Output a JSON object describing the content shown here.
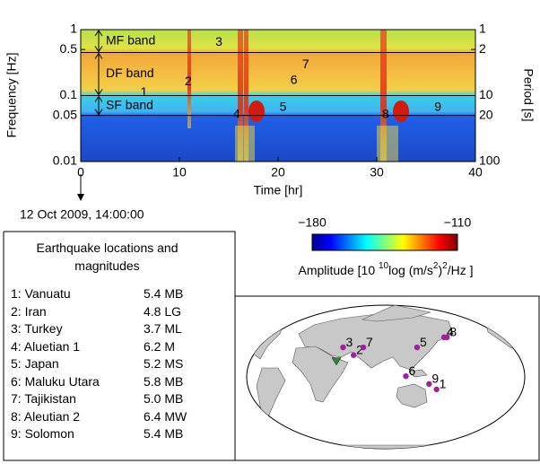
{
  "chart_data": {
    "type": "spectrogram",
    "xlabel": "Time [hr]",
    "ylabel": "Frequency [Hz]",
    "y2label": "Period [s]",
    "xlim": [
      0,
      40
    ],
    "xticks": [
      0,
      10,
      20,
      30,
      40
    ],
    "ylim": [
      0.01,
      1
    ],
    "yticks": [
      0.01,
      0.05,
      0.1,
      0.5,
      1
    ],
    "yscale": "log",
    "y2lim": [
      100,
      1
    ],
    "y2ticks": [
      100,
      20,
      10,
      2,
      1
    ],
    "y2scale": "log",
    "bands": [
      {
        "name": "MF band",
        "range": [
          1,
          0.45
        ]
      },
      {
        "name": "DF band",
        "range": [
          0.45,
          0.1
        ]
      },
      {
        "name": "SF band",
        "range": [
          0.1,
          0.05
        ]
      }
    ],
    "annotations": [
      {
        "label": "1",
        "x": 6.4,
        "y": 0.11
      },
      {
        "label": "2",
        "x": 10.9,
        "y": 0.16
      },
      {
        "label": "3",
        "x": 14,
        "y": 0.64
      },
      {
        "label": "4",
        "x": 15.8,
        "y": 0.051
      },
      {
        "label": "5",
        "x": 20.5,
        "y": 0.066
      },
      {
        "label": "6",
        "x": 21.6,
        "y": 0.17
      },
      {
        "label": "7",
        "x": 22.8,
        "y": 0.29
      },
      {
        "label": "8",
        "x": 30.9,
        "y": 0.051
      },
      {
        "label": "9",
        "x": 36.2,
        "y": 0.066
      }
    ],
    "start_note": "12 Oct 2009, 14:00:00",
    "colorbar": {
      "clim": [
        -180,
        -110
      ],
      "ticks": [
        {
          "value": -180,
          "label": "−180"
        },
        {
          "value": -110,
          "label": "−110"
        }
      ],
      "label_parts": [
        "Amplitude [10 ",
        "10",
        "log (m/s",
        "2",
        ")",
        "2",
        "/Hz ]"
      ]
    }
  },
  "legend_table": {
    "title": "Earthquake locations and magnitudes",
    "rows": [
      [
        "1: Vanuatu",
        "5.4 MB"
      ],
      [
        "2: Iran",
        "4.8 LG"
      ],
      [
        "3: Turkey",
        "3.7 ML"
      ],
      [
        "4: Aluetian 1",
        "6.2 M"
      ],
      [
        "5: Japan",
        "5.2 MS"
      ],
      [
        "6: Maluku Utara",
        "5.8 MB"
      ],
      [
        "7: Tajikistan",
        "5.0 MB"
      ],
      [
        "8: Aleutian 2",
        "6.4 MW"
      ],
      [
        "9: Solomon",
        "5.4 MB"
      ]
    ]
  },
  "map": {
    "center_lon": 100,
    "locations": [
      {
        "label": "1",
        "lon": 168,
        "lat": -16
      },
      {
        "label": "2",
        "lon": 57,
        "lat": 28
      },
      {
        "label": "3",
        "lon": 43,
        "lat": 38
      },
      {
        "label": "4",
        "lon": 178,
        "lat": 51
      },
      {
        "label": "5",
        "lon": 142,
        "lat": 38
      },
      {
        "label": "6",
        "lon": 127,
        "lat": 1
      },
      {
        "label": "7",
        "lon": 70,
        "lat": 38
      },
      {
        "label": "8",
        "lon": 182,
        "lat": 51
      },
      {
        "label": "9",
        "lon": 158,
        "lat": -9
      }
    ],
    "station": {
      "lon": 34,
      "lat": 20
    }
  }
}
